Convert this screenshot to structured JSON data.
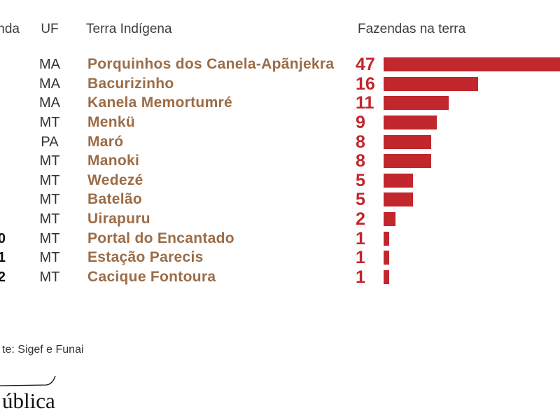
{
  "header": {
    "rank_label": "nda",
    "uf_label": "UF",
    "name_label": "Terra Indígena",
    "value_label": "Fazendas na terra"
  },
  "chart_data": {
    "type": "bar",
    "orientation": "horizontal",
    "categories": [
      "Porquinhos dos Canela-Apãnjekra",
      "Bacurizinho",
      "Kanela Memortumré",
      "Menkü",
      "Maró",
      "Manoki",
      "Wedezé",
      "Batelão",
      "Uirapuru",
      "Portal do Encantado",
      "Estação Parecis",
      "Cacique Fontoura"
    ],
    "values": [
      47,
      16,
      11,
      9,
      8,
      8,
      5,
      5,
      2,
      1,
      1,
      1
    ],
    "uf": [
      "MA",
      "MA",
      "MA",
      "MT",
      "PA",
      "MT",
      "MT",
      "MT",
      "MT",
      "MT",
      "MT",
      "MT"
    ],
    "rank": [
      "",
      "",
      "",
      "",
      "",
      "",
      "",
      "",
      "",
      "0",
      "1",
      "2"
    ],
    "grid": false,
    "legend": "none"
  },
  "colors": {
    "bar": "#c1272d",
    "value": "#c1272d",
    "name": "#9b6c46",
    "uf": "#333333",
    "header": "#3c3c3c"
  },
  "footer": {
    "source": "te: Sigef e Funai"
  },
  "logo": {
    "text": "ública"
  }
}
